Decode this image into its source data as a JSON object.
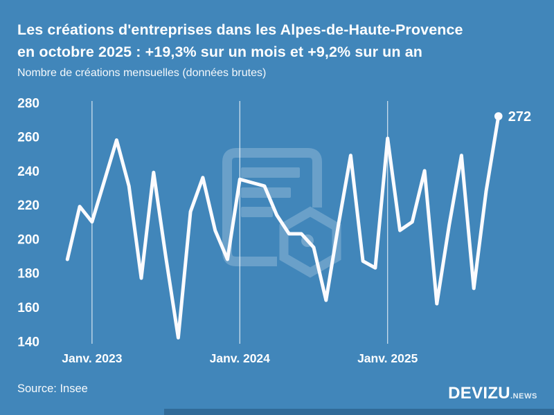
{
  "title": {
    "line1": "Les créations d'entreprises dans les Alpes-de-Haute-Provence",
    "line2": "en octobre 2025 : +19,3% sur un mois et +9,2% sur un an"
  },
  "subtitle": "Nombre de créations mensuelles (données brutes)",
  "chart_data": {
    "type": "line",
    "title": "Les créations d'entreprises dans les Alpes-de-Haute-Provence en octobre 2025 : +19,3% sur un mois et +9,2% sur un an",
    "subtitle": "Nombre de créations mensuelles (données brutes)",
    "x": [
      "2022-11",
      "2022-12",
      "2023-01",
      "2023-02",
      "2023-03",
      "2023-04",
      "2023-05",
      "2023-06",
      "2023-07",
      "2023-08",
      "2023-09",
      "2023-10",
      "2023-11",
      "2023-12",
      "2024-01",
      "2024-02",
      "2024-03",
      "2024-04",
      "2024-05",
      "2024-06",
      "2024-07",
      "2024-08",
      "2024-09",
      "2024-10",
      "2024-11",
      "2024-12",
      "2025-01",
      "2025-02",
      "2025-03",
      "2025-04",
      "2025-05",
      "2025-06",
      "2025-07",
      "2025-08",
      "2025-09",
      "2025-10"
    ],
    "values": [
      188,
      219,
      210,
      234,
      258,
      231,
      177,
      239,
      189,
      142,
      216,
      236,
      205,
      188,
      235,
      233,
      231,
      214,
      203,
      203,
      195,
      164,
      208,
      249,
      187,
      183,
      259,
      205,
      210,
      240,
      162,
      208,
      249,
      171,
      228,
      272
    ],
    "series_name": "Créations mensuelles d'entreprises",
    "ylim": [
      140,
      280
    ],
    "y_ticks": [
      280,
      260,
      240,
      220,
      200,
      180,
      160,
      140
    ],
    "x_gridline_labels": [
      {
        "label": "Janv. 2023",
        "index": 2
      },
      {
        "label": "Janv. 2024",
        "index": 14
      },
      {
        "label": "Janv. 2025",
        "index": 26
      }
    ],
    "end_label": "272",
    "grid": "vertical-only",
    "legend": "none"
  },
  "colors": {
    "background": "#4186ba",
    "line": "#fbfbfe",
    "gridline": "rgba(255,255,255,0.8)",
    "text": "#ffffff",
    "watermark": "rgba(255,255,255,0.22)"
  },
  "watermark": {
    "icon": "devizu-document-logo-watermark"
  },
  "footer": {
    "source": "Source: Insee",
    "logo_main": "DEVIZU",
    "logo_suffix": ".NEWS"
  }
}
